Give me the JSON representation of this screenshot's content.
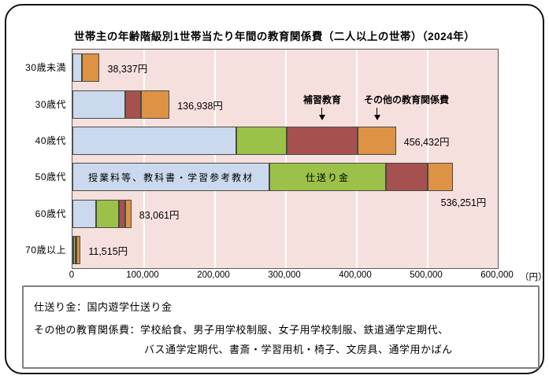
{
  "title": "世帯主の年齢階級別1世帯当たり年間の教育関係費（二人以上の世帯）（2024年）",
  "colors": {
    "tuition": "#CBD9EE",
    "remittance": "#9BC148",
    "tutoring": "#A65050",
    "other": "#DD9245",
    "plot_bg": "#F6E0DD",
    "segment_border": "#4a4a42"
  },
  "chart_data": {
    "type": "bar",
    "orientation": "horizontal",
    "title": "世帯主の年齢階級別1世帯当たり年間の教育関係費（二人以上の世帯）（2024年）",
    "categories": [
      "30歳未満",
      "30歳代",
      "40歳代",
      "50歳代",
      "60歳代",
      "70歳以上"
    ],
    "series": [
      {
        "key": "tuition",
        "name": "授業料等、教科書・学習参考教材",
        "color_key": "tuition",
        "values": [
          13000,
          74500,
          231500,
          278000,
          33700,
          1000
        ]
      },
      {
        "key": "remittance",
        "name": "仕送り金",
        "color_key": "remittance",
        "values": [
          0,
          0,
          70400,
          164000,
          31500,
          3500
        ]
      },
      {
        "key": "tutoring",
        "name": "補習教育",
        "color_key": "tutoring",
        "values": [
          0,
          22200,
          100000,
          59200,
          9200,
          500
        ]
      },
      {
        "key": "other",
        "name": "その他の教育関係費",
        "color_key": "other",
        "values": [
          25337,
          40238,
          54532,
          35051,
          8661,
          6515
        ]
      }
    ],
    "totals": [
      38337,
      136938,
      456432,
      536251,
      83061,
      11515
    ],
    "total_labels": [
      "38,337円",
      "136,938円",
      "456,432円",
      "536,251円",
      "83,061円",
      "11,515円"
    ],
    "total_label_position": [
      "right",
      "right",
      "right",
      "below",
      "right",
      "right"
    ],
    "segment_labels": [
      {
        "row": 3,
        "series": 0,
        "text": "授業料等、教科書・学習参考教材"
      },
      {
        "row": 3,
        "series": 1,
        "text": "仕送り金"
      }
    ],
    "annotations": [
      {
        "text": "補習教育"
      },
      {
        "text": "その他の教育関係費"
      }
    ],
    "x_ticks": [
      "0",
      "100,000",
      "200,000",
      "300,000",
      "400,000",
      "500,000",
      "600,000"
    ],
    "xlim": [
      0,
      600000
    ],
    "x_unit": "（円）",
    "grid": true,
    "legend": "none"
  },
  "footnote": {
    "line1": "仕送り金：国内遊学仕送り金",
    "line2": "その他の教育関係費：学校給食、男子用学校制服、女子用学校制服、鉄道通学定期代、",
    "line3": "バス通学定期代、書斎・学習用机・椅子、文房具、通学用かばん"
  }
}
